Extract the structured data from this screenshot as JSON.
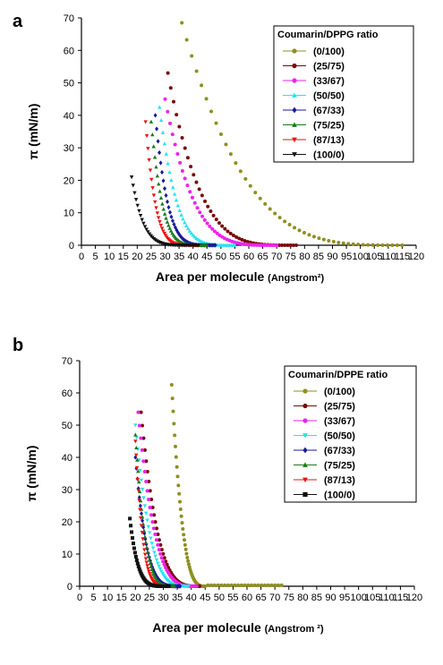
{
  "chart_data": [
    {
      "type": "scatter",
      "panel_label": "a",
      "xlabel": "Area per molecule",
      "xlabel_unit": "(Angstrom²)",
      "ylabel": "π (mN/m)",
      "xlim": [
        0,
        120
      ],
      "ylim": [
        0,
        70
      ],
      "xticks": [
        "0",
        "5",
        "10",
        "15",
        "20",
        "25",
        "30",
        "35",
        "40",
        "45",
        "50",
        "55",
        "60",
        "65",
        "70",
        "75",
        "80",
        "85",
        "90",
        "95",
        "100",
        "105",
        "110",
        "115",
        "120"
      ],
      "yticks": [
        "0",
        "10",
        "20",
        "30",
        "40",
        "50",
        "60",
        "70"
      ],
      "legend_title": "Coumarin/DPPG ratio",
      "legend_placement": "top-right",
      "series": [
        {
          "name": "(0/100)",
          "color": "#8f8f1f",
          "marker": "circle",
          "x0": 115,
          "xmin": 36,
          "ymax": 68.5,
          "k": 3.5
        },
        {
          "name": "(25/75)",
          "color": "#7a0a0a",
          "marker": "circle",
          "x0": 77,
          "xmin": 31,
          "ymax": 53,
          "k": 4
        },
        {
          "name": "(33/67)",
          "color": "#ee22ee",
          "marker": "circle",
          "x0": 70,
          "xmin": 30,
          "ymax": 45,
          "k": 4
        },
        {
          "name": "(50/50)",
          "color": "#22e5f0",
          "marker": "triangle-up",
          "x0": 55,
          "xmin": 28,
          "ymax": 42.5,
          "k": 4.5
        },
        {
          "name": "(67/33)",
          "color": "#1a1a99",
          "marker": "diamond",
          "x0": 48,
          "xmin": 26.5,
          "ymax": 40,
          "k": 5
        },
        {
          "name": "(75/25)",
          "color": "#1a7a1a",
          "marker": "triangle-up",
          "x0": 45,
          "xmin": 25,
          "ymax": 38,
          "k": 5
        },
        {
          "name": "(87/13)",
          "color": "#ee1111",
          "marker": "triangle-down",
          "x0": 42,
          "xmin": 23,
          "ymax": 38,
          "k": 5.5
        },
        {
          "name": "(100/0)",
          "color": "#111111",
          "marker": "triangle-down",
          "x0": 42,
          "xmin": 18,
          "ymax": 21,
          "k": 6
        }
      ]
    },
    {
      "type": "scatter",
      "panel_label": "b",
      "xlabel": "Area per molecule",
      "xlabel_unit": "(Angstrom ²)",
      "ylabel": "π (mN/m)",
      "xlim": [
        0,
        120
      ],
      "ylim": [
        0,
        70
      ],
      "xticks": [
        "0",
        "5",
        "10",
        "15",
        "20",
        "25",
        "30",
        "35",
        "40",
        "45",
        "50",
        "55",
        "60",
        "65",
        "70",
        "75",
        "80",
        "85",
        "90",
        "95",
        "100",
        "105",
        "110",
        "115",
        "120"
      ],
      "yticks": [
        "0",
        "10",
        "20",
        "30",
        "40",
        "50",
        "60",
        "70"
      ],
      "legend_title": "Coumarin/DPPE ratio",
      "legend_placement": "top-right",
      "series": [
        {
          "name": "(0/100)",
          "color": "#8f8f1f",
          "marker": "circle",
          "x0": 45,
          "xmin": 33,
          "ymax": 62.5,
          "k": 3,
          "tail": 73
        },
        {
          "name": "(25/75)",
          "color": "#7a0a0a",
          "marker": "circle",
          "x0": 43,
          "xmin": 22,
          "ymax": 54,
          "k": 3.5
        },
        {
          "name": "(33/67)",
          "color": "#ee22ee",
          "marker": "circle",
          "x0": 42,
          "xmin": 21,
          "ymax": 54,
          "k": 3.5
        },
        {
          "name": "(50/50)",
          "color": "#22e5f0",
          "marker": "triangle-down",
          "x0": 39,
          "xmin": 20,
          "ymax": 50,
          "k": 3.5
        },
        {
          "name": "(67/33)",
          "color": "#1a1a99",
          "marker": "diamond",
          "x0": 36,
          "xmin": 20,
          "ymax": 40,
          "k": 4
        },
        {
          "name": "(75/25)",
          "color": "#1a7a1a",
          "marker": "triangle-up",
          "x0": 34,
          "xmin": 20,
          "ymax": 47,
          "k": 4
        },
        {
          "name": "(87/13)",
          "color": "#ee1111",
          "marker": "triangle-down",
          "x0": 32,
          "xmin": 20,
          "ymax": 45,
          "k": 4.5
        },
        {
          "name": "(100/0)",
          "color": "#111111",
          "marker": "square",
          "x0": 32,
          "xmin": 18,
          "ymax": 21,
          "k": 5
        }
      ]
    }
  ]
}
